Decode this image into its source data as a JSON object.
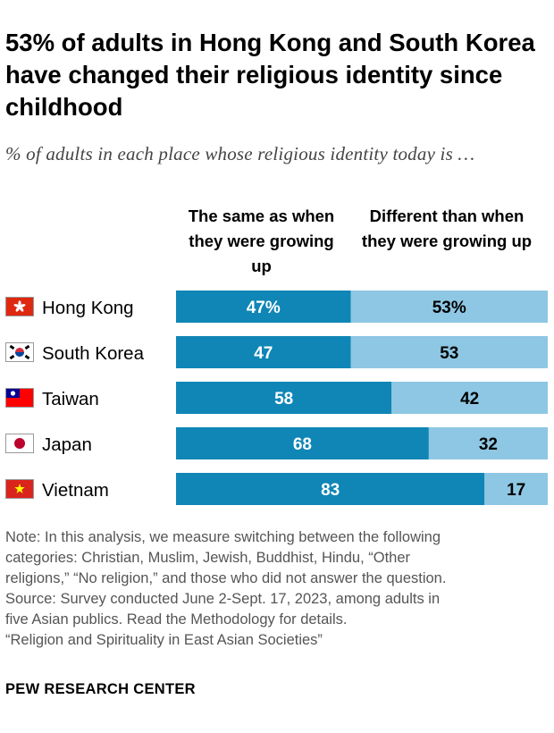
{
  "title": "53% of adults in Hong Kong and South Korea have changed their religious identity since childhood",
  "subtitle": "% of adults in each place whose religious identity today is …",
  "note_lines": [
    "Note: In this analysis, we measure switching between the following",
    "categories: Christian, Muslim, Jewish, Buddhist, Hindu, “Other",
    "religions,” “No religion,” and those who did not answer the question.",
    "Source: Survey conducted June 2-Sept. 17, 2023, among adults in",
    "five Asian publics. Read the Methodology for details.",
    "“Religion and Spirituality in East Asian Societies”"
  ],
  "footer": "PEW RESEARCH CENTER",
  "colors": {
    "same": "#0f86b6",
    "different": "#8ec7e3"
  },
  "chart_data": {
    "type": "bar",
    "orientation": "horizontal",
    "stacked": true,
    "categories": [
      "Hong Kong",
      "South Korea",
      "Taiwan",
      "Japan",
      "Vietnam"
    ],
    "flags": [
      "hong-kong-flag-icon",
      "south-korea-flag-icon",
      "taiwan-flag-icon",
      "japan-flag-icon",
      "vietnam-flag-icon"
    ],
    "series": [
      {
        "name": "The same as when they were growing up",
        "values": [
          47,
          47,
          58,
          68,
          83
        ],
        "labels": [
          "47%",
          "47",
          "58",
          "68",
          "83"
        ]
      },
      {
        "name": "Different than when they were growing up",
        "values": [
          53,
          53,
          42,
          32,
          17
        ],
        "labels": [
          "53%",
          "53",
          "42",
          "32",
          "17"
        ]
      }
    ],
    "xlim": [
      0,
      100
    ]
  }
}
